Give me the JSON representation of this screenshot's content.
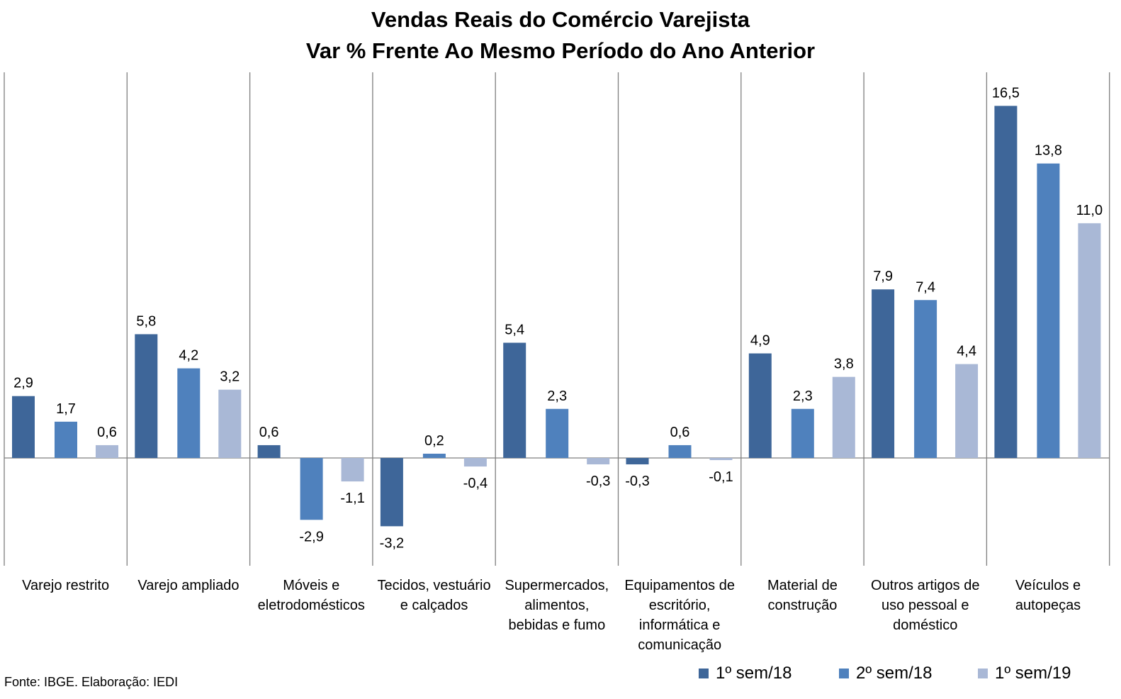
{
  "chart_data": {
    "type": "bar",
    "title": "Vendas Reais do Comércio Varejista",
    "subtitle": "Var % Frente Ao Mesmo Período do Ano Anterior",
    "categories": [
      [
        "Varejo restrito"
      ],
      [
        "Varejo ampliado"
      ],
      [
        "Móveis e",
        "eletrodomésticos"
      ],
      [
        "Tecidos, vestuário",
        "e calçados"
      ],
      [
        "Supermercados,",
        "alimentos,",
        "bebidas e fumo"
      ],
      [
        "Equipamentos de",
        "escritório,",
        "informática e",
        "comunicação"
      ],
      [
        "Material de",
        "construção"
      ],
      [
        "Outros artigos de",
        "uso pessoal e",
        "doméstico"
      ],
      [
        "Veículos e",
        "autopeças"
      ]
    ],
    "series": [
      {
        "name": "1º sem/18",
        "color": "#3e6699",
        "values": [
          2.9,
          5.8,
          0.6,
          -3.2,
          5.4,
          -0.3,
          4.9,
          7.9,
          16.5
        ],
        "labels": [
          "2,9",
          "5,8",
          "0,6",
          "-3,2",
          "5,4",
          "-0,3",
          "4,9",
          "7,9",
          "16,5"
        ]
      },
      {
        "name": "2º sem/18",
        "color": "#4f81bd",
        "values": [
          1.7,
          4.2,
          -2.9,
          0.2,
          2.3,
          0.6,
          2.3,
          7.4,
          13.8
        ],
        "labels": [
          "1,7",
          "4,2",
          "-2,9",
          "0,2",
          "2,3",
          "0,6",
          "2,3",
          "7,4",
          "13,8"
        ]
      },
      {
        "name": "1º sem/19",
        "color": "#a9b8d6",
        "values": [
          0.6,
          3.2,
          -1.1,
          -0.4,
          -0.3,
          -0.1,
          3.8,
          4.4,
          11.0
        ],
        "labels": [
          "0,6",
          "3,2",
          "-1,1",
          "-0,4",
          "-0,3",
          "-0,1",
          "3,8",
          "4,4",
          "11,0"
        ]
      }
    ],
    "ylim": [
      -5,
      18
    ],
    "grid": false,
    "legend": "bottom-right"
  },
  "source_note": "Fonte: IBGE. Elaboração: IEDI"
}
